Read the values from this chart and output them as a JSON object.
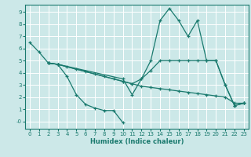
{
  "xlabel": "Humidex (Indice chaleur)",
  "background_color": "#cce8e8",
  "grid_color": "#ffffff",
  "line_color": "#1a7a6e",
  "xlim": [
    -0.5,
    23.5
  ],
  "ylim": [
    -0.6,
    9.6
  ],
  "xticks": [
    0,
    1,
    2,
    3,
    4,
    5,
    6,
    7,
    8,
    9,
    10,
    11,
    12,
    13,
    14,
    15,
    16,
    17,
    18,
    19,
    20,
    21,
    22,
    23
  ],
  "yticks": [
    0,
    1,
    2,
    3,
    4,
    5,
    6,
    7,
    8,
    9
  ],
  "ytick_labels": [
    "-0",
    "1",
    "2",
    "3",
    "4",
    "5",
    "6",
    "7",
    "8",
    "9"
  ],
  "s1_x": [
    0,
    1,
    2,
    3,
    4,
    5,
    6,
    7,
    8,
    9,
    10
  ],
  "s1_y": [
    6.5,
    5.7,
    4.8,
    4.7,
    3.7,
    2.2,
    1.4,
    1.1,
    0.9,
    0.9,
    -0.1
  ],
  "s2_x": [
    2,
    3,
    10,
    11,
    12,
    13,
    14,
    15,
    16,
    17,
    18,
    19,
    20,
    21,
    22,
    23
  ],
  "s2_y": [
    4.8,
    4.7,
    3.5,
    2.2,
    3.5,
    5.0,
    8.3,
    9.3,
    8.3,
    7.0,
    8.3,
    5.0,
    5.0,
    3.0,
    1.3,
    1.5
  ],
  "s3_x": [
    2,
    3,
    4,
    5,
    6,
    7,
    8,
    9,
    10,
    11,
    12,
    13,
    14,
    15,
    16,
    17,
    18,
    19,
    20,
    21,
    22,
    23
  ],
  "s3_y": [
    4.8,
    4.7,
    4.5,
    4.3,
    4.1,
    3.9,
    3.7,
    3.5,
    3.3,
    3.1,
    2.9,
    2.8,
    2.7,
    2.6,
    2.5,
    2.4,
    2.3,
    2.2,
    2.1,
    2.0,
    1.5,
    1.5
  ],
  "s4_x": [
    2,
    3,
    10,
    11,
    12,
    13,
    14,
    15,
    16,
    17,
    18,
    19,
    20,
    21,
    22,
    23
  ],
  "s4_y": [
    4.8,
    4.7,
    3.3,
    3.1,
    3.5,
    4.2,
    5.0,
    5.0,
    5.0,
    5.0,
    5.0,
    5.0,
    5.0,
    3.0,
    1.3,
    1.5
  ]
}
